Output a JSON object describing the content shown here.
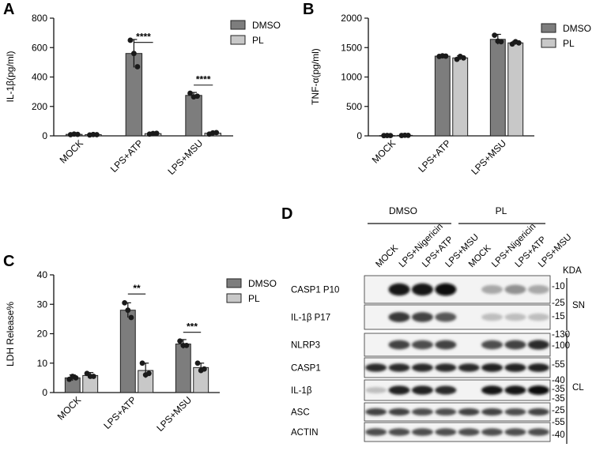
{
  "panels": {
    "a": "A",
    "b": "B",
    "c": "C",
    "d": "D"
  },
  "colors": {
    "dmso": "#7d7d7d",
    "pl": "#c8c8c8",
    "bar_stroke": "#222222",
    "dot": "#1a1a1a"
  },
  "chart_data": [
    {
      "type": "bar",
      "panel": "A",
      "ylabel": "IL-1β(pg/ml)",
      "categories": [
        "MOCK",
        "LPS+ATP",
        "LPS+MSU"
      ],
      "ylim": [
        0,
        800
      ],
      "yticks": [
        "0",
        "200",
        "400",
        "600",
        "800"
      ],
      "legend": "right",
      "series": [
        {
          "name": "DMSO",
          "values": [
            10,
            560,
            275
          ],
          "errors": [
            5,
            95,
            20
          ],
          "points": [
            [
              8,
              12,
              10
            ],
            [
              650,
              560,
              470
            ],
            [
              290,
              265,
              270
            ]
          ]
        },
        {
          "name": "PL",
          "values": [
            8,
            15,
            18
          ],
          "errors": [
            3,
            6,
            8
          ],
          "points": [
            [
              6,
              9,
              8
            ],
            [
              12,
              16,
              17
            ],
            [
              12,
              20,
              22
            ]
          ]
        }
      ],
      "significance": [
        {
          "category": "LPS+ATP",
          "label": "****",
          "y": 635
        },
        {
          "category": "LPS+MSU",
          "label": "****",
          "y": 345
        }
      ]
    },
    {
      "type": "bar",
      "panel": "B",
      "ylabel": "TNF-α(pg/ml)",
      "categories": [
        "MOCK",
        "LPS+ATP",
        "LPS+MSU"
      ],
      "ylim": [
        0,
        2000
      ],
      "yticks": [
        "0",
        "500",
        "1000",
        "1500",
        "2000"
      ],
      "legend": "right",
      "series": [
        {
          "name": "DMSO",
          "values": [
            5,
            1355,
            1640
          ],
          "errors": [
            3,
            15,
            85
          ],
          "points": [
            [
              4,
              6,
              5
            ],
            [
              1350,
              1360,
              1355
            ],
            [
              1710,
              1610,
              1600
            ]
          ]
        },
        {
          "name": "PL",
          "values": [
            8,
            1325,
            1580
          ],
          "errors": [
            3,
            35,
            30
          ],
          "points": [
            [
              6,
              10,
              8
            ],
            [
              1300,
              1350,
              1325
            ],
            [
              1560,
              1600,
              1580
            ]
          ]
        }
      ],
      "significance": []
    },
    {
      "type": "bar",
      "panel": "C",
      "ylabel": "LDH Release%",
      "categories": [
        "MOCK",
        "LPS+ATP",
        "LPS+MSU"
      ],
      "ylim": [
        0,
        40
      ],
      "yticks": [
        "0",
        "10",
        "20",
        "30",
        "40"
      ],
      "legend": "right",
      "series": [
        {
          "name": "DMSO",
          "values": [
            5,
            28,
            16.5
          ],
          "errors": [
            1,
            2.5,
            1.5
          ],
          "points": [
            [
              4.5,
              5.5,
              5
            ],
            [
              30.5,
              28,
              25.5
            ],
            [
              17.5,
              16,
              16
            ]
          ]
        },
        {
          "name": "PL",
          "values": [
            5.8,
            7.5,
            8.5
          ],
          "errors": [
            1,
            2.5,
            1.5
          ],
          "points": [
            [
              6.5,
              5.5,
              5.5
            ],
            [
              10,
              6,
              6.5
            ],
            [
              10,
              7.5,
              8
            ]
          ]
        }
      ],
      "significance": [
        {
          "category": "LPS+ATP",
          "label": "**",
          "y": 33.5
        },
        {
          "category": "LPS+MSU",
          "label": "***",
          "y": 20.5
        }
      ]
    }
  ],
  "western_blot": {
    "groups": [
      {
        "label": "DMSO"
      },
      {
        "label": "PL"
      }
    ],
    "lanes": [
      "MOCK",
      "LPS+Nigericin",
      "LPS+ATP",
      "LPS+MSU",
      "MOCK",
      "LPS+Nigericin",
      "LPS+ATP",
      "LPS+MSU"
    ],
    "kda_label": "KDA",
    "rows": [
      {
        "label": "CASP1 P10",
        "intensity": [
          0,
          0.95,
          0.95,
          1.0,
          0,
          0.3,
          0.4,
          0.3
        ]
      },
      {
        "label": "IL-1β P17",
        "intensity": [
          0,
          0.8,
          0.75,
          0.65,
          0,
          0.2,
          0.2,
          0.2
        ]
      },
      {
        "label": "NLRP3",
        "intensity": [
          0,
          0.75,
          0.7,
          0.75,
          0,
          0.7,
          0.75,
          0.85
        ]
      },
      {
        "label": "CASP1",
        "intensity": [
          0.85,
          0.85,
          0.85,
          0.85,
          0.85,
          0.9,
          0.9,
          0.9
        ]
      },
      {
        "label": "IL-1β",
        "intensity": [
          0.2,
          0.9,
          0.9,
          0.85,
          0,
          0.95,
          0.95,
          1.0
        ]
      },
      {
        "label": "ASC",
        "intensity": [
          0.75,
          0.75,
          0.7,
          0.7,
          0.75,
          0.75,
          0.7,
          0.75
        ]
      },
      {
        "label": "ACTIN",
        "intensity": [
          0.7,
          0.7,
          0.7,
          0.7,
          0.7,
          0.7,
          0.7,
          0.7
        ]
      }
    ],
    "markers": [
      "-10",
      "-25",
      "-15",
      "-130",
      "-100",
      "-55",
      "-40",
      "-35",
      "-35",
      "-25",
      "-55",
      "-40"
    ],
    "sections": [
      {
        "label": "SN"
      },
      {
        "label": "CL"
      }
    ]
  }
}
